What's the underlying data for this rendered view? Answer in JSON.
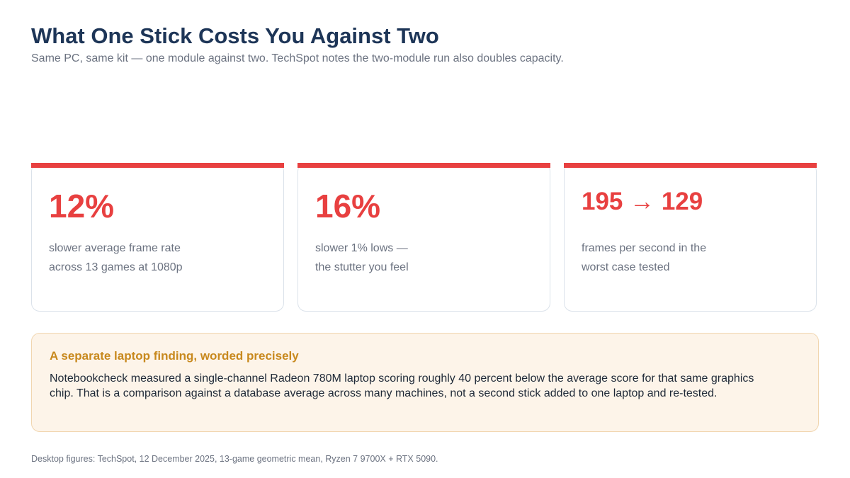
{
  "header": {
    "title": "What One Stick Costs You Against Two",
    "subtitle": "Same PC, same kit — one module against two. TechSpot notes the two-module run also doubles capacity."
  },
  "stats": [
    {
      "value": "12%",
      "desc_line1": "slower average frame rate",
      "desc_line2": "across 13 games at 1080p"
    },
    {
      "value": "16%",
      "desc_line1": "slower 1% lows —",
      "desc_line2": "the stutter you feel"
    },
    {
      "value": "195 → 129",
      "desc_line1": "frames per second in the",
      "desc_line2": "worst case tested"
    }
  ],
  "note": {
    "title": "A separate laptop finding, worded precisely",
    "body": "Notebookcheck measured a single-channel Radeon 780M laptop scoring roughly 40 percent below the average score for that same graphics chip. That is a comparison against a database average across many machines, not a second stick added to one laptop and re-tested."
  },
  "footnote": "Desktop figures: TechSpot, 12 December 2025, 13-game geometric mean, Ryzen 7 9700X + RTX 5090.",
  "colors": {
    "accent_red": "#e84040",
    "title_navy": "#1d3557",
    "note_gold": "#c8891e",
    "note_bg": "#fdf4e9"
  }
}
